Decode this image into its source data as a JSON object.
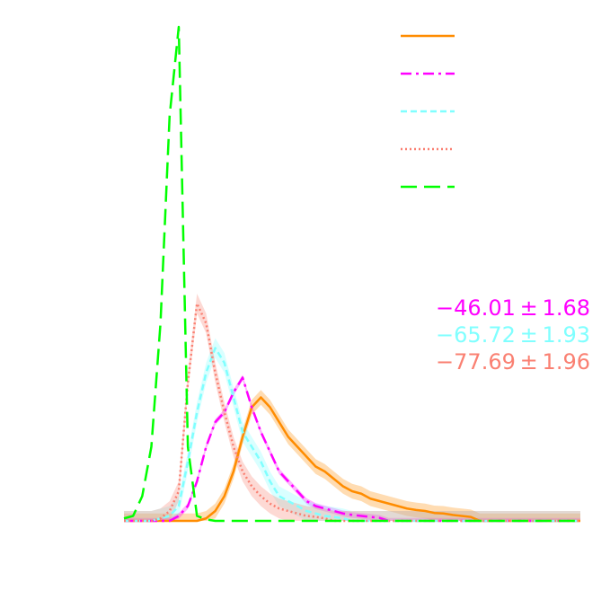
{
  "chart_data": {
    "type": "line",
    "title": "",
    "xlabel": "",
    "ylabel": "",
    "xlim": [
      0,
      100
    ],
    "ylim": [
      0,
      1
    ],
    "grid": false,
    "legend_position": "top-right",
    "x": [
      0,
      2,
      4,
      6,
      8,
      10,
      12,
      14,
      16,
      18,
      20,
      22,
      24,
      26,
      28,
      30,
      32,
      34,
      36,
      38,
      40,
      42,
      44,
      46,
      48,
      50,
      52,
      54,
      56,
      58,
      60,
      62,
      64,
      66,
      68,
      70,
      72,
      74,
      76,
      78,
      80,
      82,
      84,
      86,
      88,
      90,
      92,
      94,
      96,
      98,
      100
    ],
    "series": [
      {
        "color": "#ff8c00",
        "dash": "solid",
        "values": [
          0,
          0,
          0,
          0,
          0,
          0,
          0,
          0,
          0,
          0.005,
          0.02,
          0.05,
          0.1,
          0.17,
          0.23,
          0.25,
          0.23,
          0.2,
          0.17,
          0.15,
          0.13,
          0.11,
          0.1,
          0.085,
          0.07,
          0.06,
          0.055,
          0.045,
          0.04,
          0.035,
          0.03,
          0.025,
          0.022,
          0.02,
          0.016,
          0.015,
          0.012,
          0.01,
          0.008,
          0,
          0,
          0,
          0,
          0,
          0,
          0,
          0,
          0,
          0,
          0,
          0
        ],
        "band": 0.015
      },
      {
        "color": "#ff00ff",
        "dash": "dashdot",
        "values": [
          0,
          0,
          0,
          0,
          0,
          0,
          0.01,
          0.03,
          0.08,
          0.15,
          0.2,
          0.22,
          0.26,
          0.29,
          0.23,
          0.18,
          0.14,
          0.1,
          0.08,
          0.06,
          0.04,
          0.03,
          0.025,
          0.02,
          0.015,
          0.012,
          0.01,
          0.008,
          0.006,
          0,
          0,
          0,
          0,
          0,
          0,
          0,
          0,
          0,
          0,
          0,
          0,
          0,
          0,
          0,
          0,
          0,
          0,
          0,
          0,
          0,
          0
        ],
        "band": 0.006
      },
      {
        "color": "#80ffff",
        "dash": "dashed",
        "values": [
          0,
          0,
          0,
          0,
          0.005,
          0.01,
          0.03,
          0.12,
          0.22,
          0.3,
          0.35,
          0.32,
          0.25,
          0.18,
          0.15,
          0.12,
          0.08,
          0.05,
          0.04,
          0.03,
          0.02,
          0.015,
          0.01,
          0.008,
          0.005,
          0,
          0,
          0,
          0,
          0,
          0,
          0,
          0,
          0,
          0,
          0,
          0,
          0,
          0,
          0,
          0,
          0,
          0,
          0,
          0,
          0,
          0,
          0,
          0,
          0,
          0
        ],
        "band": 0.02
      },
      {
        "color": "#fa8072",
        "dash": "dotted",
        "values": [
          0,
          0,
          0,
          0,
          0.005,
          0.02,
          0.06,
          0.28,
          0.44,
          0.4,
          0.3,
          0.22,
          0.15,
          0.1,
          0.07,
          0.05,
          0.035,
          0.025,
          0.02,
          0.015,
          0.01,
          0.008,
          0.005,
          0,
          0,
          0,
          0,
          0,
          0,
          0,
          0,
          0,
          0,
          0,
          0,
          0,
          0,
          0,
          0,
          0,
          0,
          0,
          0,
          0,
          0,
          0,
          0,
          0,
          0,
          0,
          0
        ],
        "band": 0.02
      },
      {
        "color": "#00ff00",
        "dash": "longdash",
        "values": [
          0.005,
          0.01,
          0.05,
          0.15,
          0.4,
          0.82,
          1.0,
          0.15,
          0.01,
          0.003,
          0,
          0,
          0,
          0,
          0,
          0,
          0,
          0,
          0,
          0,
          0,
          0,
          0,
          0,
          0,
          0,
          0,
          0,
          0,
          0,
          0,
          0,
          0,
          0,
          0,
          0,
          0,
          0,
          0,
          0,
          0,
          0,
          0,
          0,
          0,
          0,
          0,
          0,
          0,
          0,
          0
        ],
        "band": 0
      }
    ],
    "annotations": [
      {
        "text": "−46.01 ± 1.68",
        "color": "#ff00ff"
      },
      {
        "text": "−65.72 ± 1.93",
        "color": "#80ffff"
      },
      {
        "text": "−77.69 ± 1.96",
        "color": "#fa8072"
      }
    ]
  }
}
